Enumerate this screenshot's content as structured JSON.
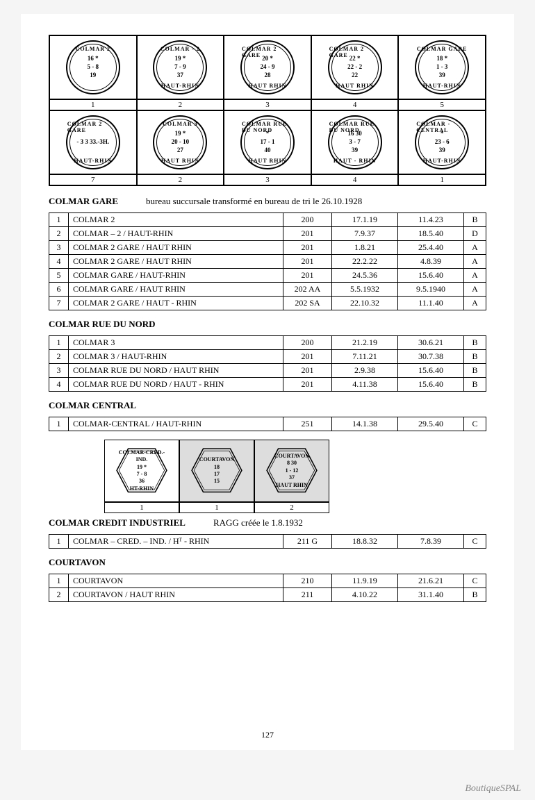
{
  "stamps_row1": [
    {
      "top": "COLMAR 2",
      "center": "16 *\n5 - 8\n19",
      "bottom": "",
      "label": "1"
    },
    {
      "top": "COLMAR - 2",
      "center": "19 *\n7 - 9\n37",
      "bottom": "HAUT-RHIN",
      "label": "2"
    },
    {
      "top": "COLMAR 2 GARE",
      "center": "20 *\n24 - 9\n28",
      "bottom": "HAUT RHIN",
      "label": "3"
    },
    {
      "top": "COLMAR 2 GARE",
      "center": "22 *\n22 - 2\n22",
      "bottom": "HAUT RHIN",
      "label": "4"
    },
    {
      "top": "COLMAR GARE",
      "center": "18 *\n1 - 3\n39",
      "bottom": "HAUT-RHIN",
      "label": "5"
    }
  ],
  "stamps_row2": [
    {
      "top": "COLMAR 2 GARE",
      "center": "- 3 3 33.-3H.",
      "bottom": "HAUT-RHIN",
      "label": "7"
    },
    {
      "top": "COLMAR 3",
      "center": "19 *\n20 - 10\n27",
      "bottom": "HAUT RHIN",
      "label": "2"
    },
    {
      "top": "COLMAR RUE DU NORD",
      "center": "*\n17 - 1\n40",
      "bottom": "HAUT RHIN",
      "label": "3"
    },
    {
      "top": "COLMAR RUE DU NORD",
      "center": "16 30\n3 - 7\n39",
      "bottom": "HAUT - RHIN",
      "label": "4"
    },
    {
      "top": "COLMAR - CENTRAL",
      "center": "*\n23 - 6\n39",
      "bottom": "HAUT-RHIN",
      "label": "1"
    }
  ],
  "section1": {
    "title": "COLMAR GARE",
    "note": "bureau succursale transformé en bureau de tri le 26.10.1928",
    "rows": [
      [
        "1",
        "COLMAR 2",
        "200",
        "17.1.19",
        "11.4.23",
        "B"
      ],
      [
        "2",
        "COLMAR – 2 / HAUT-RHIN",
        "201",
        "7.9.37",
        "18.5.40",
        "D"
      ],
      [
        "3",
        "COLMAR 2 GARE / HAUT RHIN",
        "201",
        "1.8.21",
        "25.4.40",
        "A"
      ],
      [
        "4",
        "COLMAR 2 GARE / HAUT RHIN",
        "201",
        "22.2.22",
        "4.8.39",
        "A"
      ],
      [
        "5",
        "COLMAR GARE / HAUT-RHIN",
        "201",
        "24.5.36",
        "15.6.40",
        "A"
      ],
      [
        "6",
        "COLMAR GARE / HAUT RHIN",
        "202 AA",
        "5.5.1932",
        "9.5.1940",
        "A"
      ],
      [
        "7",
        "COLMAR 2 GARE / HAUT - RHIN",
        "202 SA",
        "22.10.32",
        "11.1.40",
        "A"
      ]
    ]
  },
  "section2": {
    "title": "COLMAR RUE DU NORD",
    "rows": [
      [
        "1",
        "COLMAR 3",
        "200",
        "21.2.19",
        "30.6.21",
        "B"
      ],
      [
        "2",
        "COLMAR 3 / HAUT-RHIN",
        "201",
        "7.11.21",
        "30.7.38",
        "B"
      ],
      [
        "3",
        "COLMAR RUE DU NORD / HAUT RHIN",
        "201",
        "2.9.38",
        "15.6.40",
        "B"
      ],
      [
        "4",
        "COLMAR RUE DU NORD / HAUT - RHIN",
        "201",
        "4.11.38",
        "15.6.40",
        "B"
      ]
    ]
  },
  "section3": {
    "title": "COLMAR CENTRAL",
    "rows": [
      [
        "1",
        "COLMAR-CENTRAL / HAUT-RHIN",
        "251",
        "14.1.38",
        "29.5.40",
        "C"
      ]
    ]
  },
  "hex_stamps": [
    {
      "text": "COLMAR-CRED.-IND.\n19 *\n7 - 8\n36\nHT-RHIN",
      "label": "1"
    },
    {
      "text": "COURTAVON\n18\n17\n15",
      "label": "1",
      "img": true
    },
    {
      "text": "COURTAVON\n8 30\n1 - 12\n37\nHAUT RHIN",
      "label": "2",
      "img": true
    }
  ],
  "section4": {
    "title": "COLMAR CREDIT INDUSTRIEL",
    "note": "RAGG créée le 1.8.1932",
    "rows": [
      [
        "1",
        "COLMAR – CRED. – IND. / Hᵀ - RHIN",
        "211 G",
        "18.8.32",
        "7.8.39",
        "C"
      ]
    ]
  },
  "section5": {
    "title": "COURTAVON",
    "rows": [
      [
        "1",
        "COURTAVON",
        "210",
        "11.9.19",
        "21.6.21",
        "C"
      ],
      [
        "2",
        "COURTAVON / HAUT RHIN",
        "211",
        "4.10.22",
        "31.1.40",
        "B"
      ]
    ]
  },
  "page_number": "127",
  "watermark": "BoutiqueSPAL"
}
